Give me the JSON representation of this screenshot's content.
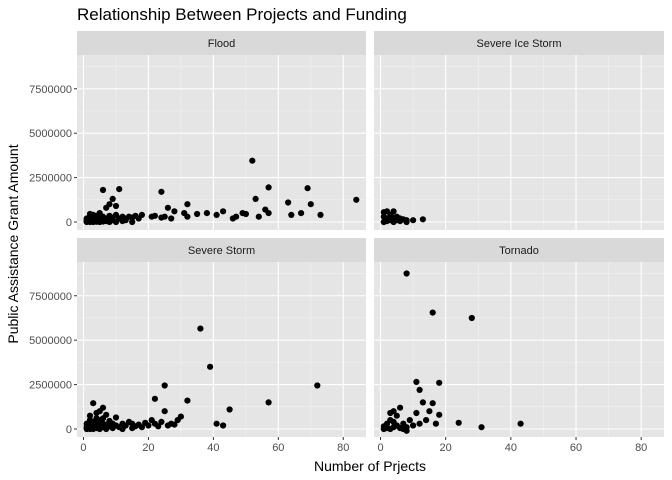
{
  "chart_data": {
    "type": "scatter",
    "title": "Relationship Between Projects and Funding",
    "xlabel": "Number of Prjects",
    "ylabel": "Public Assistance Grant Amount",
    "xlim": [
      -2,
      87
    ],
    "ylim": [
      -450000,
      9400000
    ],
    "x_ticks": [
      0,
      20,
      40,
      60,
      80
    ],
    "x_tick_labels": [
      "0",
      "20",
      "40",
      "60",
      "80"
    ],
    "y_ticks": [
      0,
      2500000,
      5000000,
      7500000
    ],
    "y_tick_labels": [
      "0",
      "2500000",
      "5000000",
      "7500000"
    ],
    "grid": true,
    "point_color": "#000000",
    "panel_background": "#e5e5e5",
    "strip_background": "#d9d9d9",
    "facets": [
      {
        "name": "Flood",
        "points": [
          [
            1,
            0
          ],
          [
            1,
            20000
          ],
          [
            1,
            50000
          ],
          [
            1,
            100000
          ],
          [
            1,
            200000
          ],
          [
            2,
            0
          ],
          [
            2,
            30000
          ],
          [
            2,
            80000
          ],
          [
            2,
            150000
          ],
          [
            2,
            300000
          ],
          [
            2,
            450000
          ],
          [
            3,
            0
          ],
          [
            3,
            60000
          ],
          [
            3,
            120000
          ],
          [
            3,
            250000
          ],
          [
            3,
            400000
          ],
          [
            4,
            10000
          ],
          [
            4,
            90000
          ],
          [
            4,
            180000
          ],
          [
            4,
            350000
          ],
          [
            5,
            0
          ],
          [
            5,
            150000
          ],
          [
            5,
            280000
          ],
          [
            5,
            500000
          ],
          [
            6,
            20000
          ],
          [
            6,
            100000
          ],
          [
            6,
            1800000
          ],
          [
            6,
            300000
          ],
          [
            7,
            50000
          ],
          [
            7,
            200000
          ],
          [
            7,
            800000
          ],
          [
            8,
            0
          ],
          [
            8,
            350000
          ],
          [
            8,
            1000000
          ],
          [
            9,
            100000
          ],
          [
            9,
            1300000
          ],
          [
            9,
            250000
          ],
          [
            10,
            0
          ],
          [
            10,
            900000
          ],
          [
            10,
            400000
          ],
          [
            11,
            1850000
          ],
          [
            11,
            200000
          ],
          [
            12,
            50000
          ],
          [
            12,
            300000
          ],
          [
            13,
            100000
          ],
          [
            13,
            200000
          ],
          [
            14,
            300000
          ],
          [
            15,
            0
          ],
          [
            15,
            250000
          ],
          [
            16,
            350000
          ],
          [
            17,
            200000
          ],
          [
            18,
            400000
          ],
          [
            21,
            300000
          ],
          [
            22,
            350000
          ],
          [
            24,
            1700000
          ],
          [
            24,
            250000
          ],
          [
            25,
            300000
          ],
          [
            26,
            800000
          ],
          [
            27,
            200000
          ],
          [
            28,
            600000
          ],
          [
            31,
            500000
          ],
          [
            32,
            1000000
          ],
          [
            32,
            300000
          ],
          [
            35,
            450000
          ],
          [
            38,
            500000
          ],
          [
            41,
            400000
          ],
          [
            43,
            600000
          ],
          [
            46,
            200000
          ],
          [
            47,
            300000
          ],
          [
            49,
            500000
          ],
          [
            50,
            450000
          ],
          [
            52,
            3450000
          ],
          [
            53,
            1300000
          ],
          [
            54,
            300000
          ],
          [
            56,
            700000
          ],
          [
            57,
            1950000
          ],
          [
            57,
            500000
          ],
          [
            63,
            1100000
          ],
          [
            64,
            400000
          ],
          [
            67,
            500000
          ],
          [
            69,
            1900000
          ],
          [
            70,
            1000000
          ],
          [
            73,
            400000
          ],
          [
            84,
            1250000
          ]
        ]
      },
      {
        "name": "Severe Ice Storm",
        "points": [
          [
            1,
            0
          ],
          [
            1,
            300000
          ],
          [
            1,
            550000
          ],
          [
            2,
            50000
          ],
          [
            2,
            200000
          ],
          [
            2,
            600000
          ],
          [
            3,
            100000
          ],
          [
            3,
            400000
          ],
          [
            4,
            0
          ],
          [
            4,
            250000
          ],
          [
            4,
            600000
          ],
          [
            5,
            100000
          ],
          [
            5,
            300000
          ],
          [
            6,
            50000
          ],
          [
            6,
            200000
          ],
          [
            7,
            150000
          ],
          [
            8,
            0
          ],
          [
            8,
            100000
          ],
          [
            10,
            100000
          ],
          [
            13,
            150000
          ]
        ]
      },
      {
        "name": "Severe Storm",
        "points": [
          [
            1,
            0
          ],
          [
            1,
            50000
          ],
          [
            1,
            150000
          ],
          [
            1,
            300000
          ],
          [
            2,
            0
          ],
          [
            2,
            100000
          ],
          [
            2,
            250000
          ],
          [
            2,
            500000
          ],
          [
            2,
            750000
          ],
          [
            3,
            0
          ],
          [
            3,
            150000
          ],
          [
            3,
            400000
          ],
          [
            3,
            1450000
          ],
          [
            3,
            200000
          ],
          [
            4,
            50000
          ],
          [
            4,
            300000
          ],
          [
            4,
            600000
          ],
          [
            4,
            900000
          ],
          [
            5,
            0
          ],
          [
            5,
            200000
          ],
          [
            5,
            500000
          ],
          [
            5,
            1000000
          ],
          [
            6,
            100000
          ],
          [
            6,
            300000
          ],
          [
            6,
            1200000
          ],
          [
            6,
            600000
          ],
          [
            7,
            0
          ],
          [
            7,
            250000
          ],
          [
            7,
            800000
          ],
          [
            8,
            150000
          ],
          [
            8,
            450000
          ],
          [
            9,
            50000
          ],
          [
            9,
            300000
          ],
          [
            10,
            200000
          ],
          [
            10,
            650000
          ],
          [
            11,
            100000
          ],
          [
            12,
            300000
          ],
          [
            12,
            0
          ],
          [
            13,
            200000
          ],
          [
            14,
            400000
          ],
          [
            15,
            50000
          ],
          [
            15,
            300000
          ],
          [
            16,
            150000
          ],
          [
            17,
            250000
          ],
          [
            18,
            100000
          ],
          [
            19,
            350000
          ],
          [
            20,
            200000
          ],
          [
            21,
            500000
          ],
          [
            22,
            300000
          ],
          [
            22,
            1700000
          ],
          [
            23,
            150000
          ],
          [
            24,
            400000
          ],
          [
            25,
            1000000
          ],
          [
            25,
            2450000
          ],
          [
            26,
            200000
          ],
          [
            27,
            300000
          ],
          [
            28,
            250000
          ],
          [
            29,
            500000
          ],
          [
            30,
            700000
          ],
          [
            32,
            1600000
          ],
          [
            36,
            5650000
          ],
          [
            39,
            3500000
          ],
          [
            41,
            300000
          ],
          [
            43,
            200000
          ],
          [
            45,
            1100000
          ],
          [
            57,
            1500000
          ],
          [
            72,
            2450000
          ]
        ]
      },
      {
        "name": "Tornado",
        "points": [
          [
            1,
            0
          ],
          [
            1,
            150000
          ],
          [
            2,
            50000
          ],
          [
            2,
            300000
          ],
          [
            3,
            0
          ],
          [
            3,
            500000
          ],
          [
            3,
            900000
          ],
          [
            4,
            100000
          ],
          [
            4,
            1000000
          ],
          [
            4,
            400000
          ],
          [
            5,
            200000
          ],
          [
            5,
            750000
          ],
          [
            6,
            50000
          ],
          [
            6,
            1200000
          ],
          [
            7,
            300000
          ],
          [
            7,
            0
          ],
          [
            8,
            8750000
          ],
          [
            8,
            100000
          ],
          [
            8,
            -100000
          ],
          [
            9,
            500000
          ],
          [
            10,
            200000
          ],
          [
            11,
            2650000
          ],
          [
            11,
            900000
          ],
          [
            12,
            2200000
          ],
          [
            12,
            300000
          ],
          [
            13,
            1500000
          ],
          [
            14,
            500000
          ],
          [
            15,
            1000000
          ],
          [
            16,
            6550000
          ],
          [
            16,
            1450000
          ],
          [
            17,
            300000
          ],
          [
            18,
            2600000
          ],
          [
            18,
            800000
          ],
          [
            24,
            350000
          ],
          [
            28,
            6250000
          ],
          [
            31,
            100000
          ],
          [
            43,
            300000
          ]
        ]
      }
    ]
  }
}
